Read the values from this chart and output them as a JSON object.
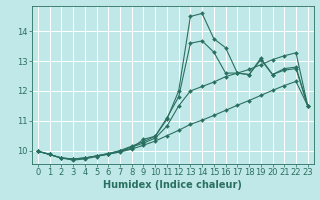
{
  "xlabel": "Humidex (Indice chaleur)",
  "background_color": "#c0e8e8",
  "line_color": "#2a7060",
  "grid_color": "#ffffff",
  "xlim": [
    -0.5,
    23.5
  ],
  "ylim": [
    9.55,
    14.85
  ],
  "yticks": [
    10,
    11,
    12,
    13,
    14
  ],
  "xticks": [
    0,
    1,
    2,
    3,
    4,
    5,
    6,
    7,
    8,
    9,
    10,
    11,
    12,
    13,
    14,
    15,
    16,
    17,
    18,
    19,
    20,
    21,
    22,
    23
  ],
  "series": [
    [
      9.98,
      9.87,
      9.75,
      9.68,
      9.72,
      9.8,
      9.88,
      9.97,
      10.08,
      10.38,
      10.48,
      11.05,
      12.0,
      14.5,
      14.6,
      13.75,
      13.45,
      12.6,
      12.55,
      13.1,
      12.55,
      12.75,
      12.8,
      11.5
    ],
    [
      9.98,
      9.87,
      9.75,
      9.72,
      9.75,
      9.82,
      9.9,
      10.0,
      10.15,
      10.3,
      10.48,
      11.1,
      11.8,
      13.6,
      13.68,
      13.3,
      12.6,
      12.6,
      12.55,
      13.05,
      12.55,
      12.7,
      12.75,
      11.5
    ],
    [
      9.98,
      9.87,
      9.75,
      9.72,
      9.75,
      9.82,
      9.9,
      9.98,
      10.12,
      10.25,
      10.42,
      10.82,
      11.5,
      12.0,
      12.15,
      12.3,
      12.48,
      12.6,
      12.72,
      12.88,
      13.05,
      13.18,
      13.28,
      11.5
    ],
    [
      9.98,
      9.87,
      9.75,
      9.72,
      9.75,
      9.82,
      9.88,
      9.95,
      10.05,
      10.18,
      10.32,
      10.5,
      10.68,
      10.88,
      11.02,
      11.18,
      11.35,
      11.52,
      11.68,
      11.85,
      12.02,
      12.18,
      12.32,
      11.5
    ]
  ],
  "xlabel_fontsize": 7,
  "tick_fontsize": 6,
  "marker_size": 2.0,
  "linewidth": 0.8
}
